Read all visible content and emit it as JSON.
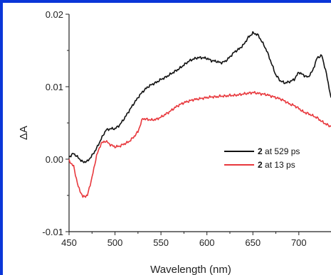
{
  "chart_data": {
    "type": "line",
    "xlabel": "Wavelength (nm)",
    "ylabel": "ΔA",
    "xlim": [
      450,
      735
    ],
    "ylim": [
      -0.01,
      0.02
    ],
    "xticks": [
      450,
      500,
      550,
      600,
      650,
      700
    ],
    "yticks": [
      -0.01,
      0.0,
      0.01,
      0.02
    ],
    "ytick_labels": [
      "-0.01",
      "0.00",
      "0.01",
      "0.02"
    ],
    "grid": false,
    "legend_position": "center-right",
    "series": [
      {
        "name_bold": "2",
        "name_rest": " at 529 ps",
        "color": "#111111",
        "x": [
          450,
          455,
          460,
          465,
          470,
          475,
          480,
          485,
          490,
          495,
          500,
          505,
          510,
          515,
          520,
          525,
          530,
          535,
          540,
          545,
          550,
          555,
          560,
          565,
          570,
          575,
          580,
          585,
          590,
          595,
          600,
          605,
          610,
          615,
          620,
          625,
          630,
          635,
          640,
          645,
          650,
          655,
          660,
          665,
          670,
          675,
          680,
          685,
          690,
          695,
          700,
          705,
          710,
          715,
          720,
          725,
          730,
          735
        ],
        "y": [
          0.0003,
          0.0008,
          0.0002,
          -0.0004,
          -0.0003,
          0.0005,
          0.0015,
          0.0028,
          0.004,
          0.0042,
          0.0042,
          0.0047,
          0.0056,
          0.0066,
          0.0076,
          0.0085,
          0.0093,
          0.0099,
          0.0103,
          0.0106,
          0.011,
          0.0113,
          0.0117,
          0.0121,
          0.0125,
          0.013,
          0.0135,
          0.0138,
          0.014,
          0.014,
          0.0139,
          0.0136,
          0.0135,
          0.0133,
          0.0135,
          0.0141,
          0.0148,
          0.0152,
          0.0158,
          0.0168,
          0.0174,
          0.0172,
          0.0162,
          0.015,
          0.0133,
          0.0116,
          0.0108,
          0.0105,
          0.0107,
          0.011,
          0.012,
          0.0116,
          0.0113,
          0.0122,
          0.014,
          0.0143,
          0.0118,
          0.0085
        ]
      },
      {
        "name_bold": "2",
        "name_rest": " at 13 ps",
        "color": "#e8383d",
        "x": [
          450,
          455,
          460,
          465,
          470,
          475,
          480,
          485,
          490,
          495,
          500,
          505,
          510,
          515,
          520,
          525,
          530,
          535,
          540,
          545,
          550,
          555,
          560,
          565,
          570,
          575,
          580,
          585,
          590,
          595,
          600,
          605,
          610,
          615,
          620,
          625,
          630,
          635,
          640,
          645,
          650,
          655,
          660,
          665,
          670,
          675,
          680,
          685,
          690,
          695,
          700,
          705,
          710,
          715,
          720,
          725,
          730,
          735
        ],
        "y": [
          -0.0002,
          -0.001,
          -0.0038,
          -0.0052,
          -0.005,
          -0.0025,
          0.0005,
          0.0022,
          0.0025,
          0.002,
          0.0017,
          0.0018,
          0.0021,
          0.0024,
          0.003,
          0.0038,
          0.0056,
          0.0055,
          0.0054,
          0.0055,
          0.0058,
          0.0062,
          0.0066,
          0.0071,
          0.0075,
          0.0078,
          0.008,
          0.0082,
          0.0083,
          0.0084,
          0.0085,
          0.0086,
          0.0086,
          0.0087,
          0.0087,
          0.0088,
          0.0088,
          0.0089,
          0.009,
          0.0091,
          0.0092,
          0.0091,
          0.009,
          0.0089,
          0.0087,
          0.0085,
          0.0083,
          0.008,
          0.0076,
          0.0074,
          0.007,
          0.0065,
          0.0063,
          0.006,
          0.0057,
          0.0052,
          0.0048,
          0.0045
        ]
      }
    ]
  }
}
